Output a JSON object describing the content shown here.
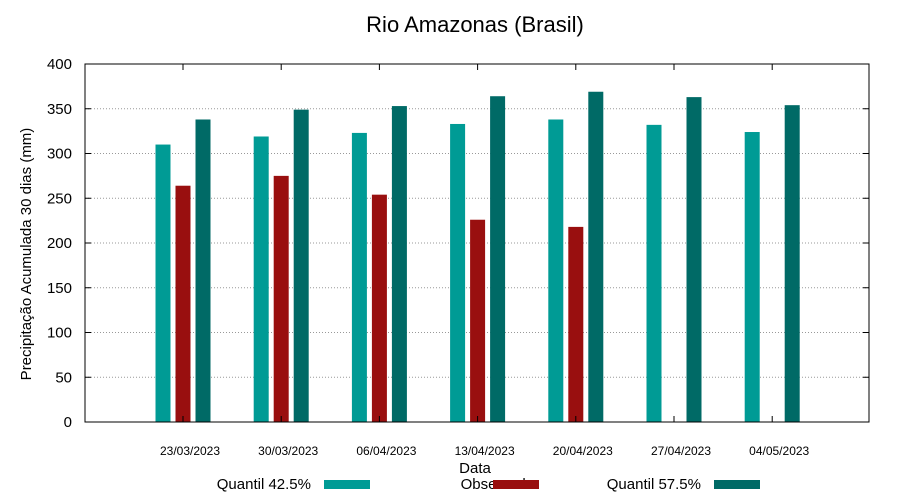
{
  "chart_data": {
    "type": "bar",
    "title": "Rio Amazonas (Brasil)",
    "xlabel": "Data",
    "ylabel": "Precipitação Acumulada 30 dias (mm)",
    "ylim": [
      0,
      400
    ],
    "yticks": [
      0,
      50,
      100,
      150,
      200,
      250,
      300,
      350,
      400
    ],
    "grid": true,
    "legend_position": "bottom",
    "categories": [
      "23/03/2023",
      "30/03/2023",
      "06/04/2023",
      "13/04/2023",
      "20/04/2023",
      "27/04/2023",
      "04/05/2023"
    ],
    "series": [
      {
        "name": "Quantil 42.5%",
        "color": "#009b95",
        "values": [
          310,
          319,
          323,
          333,
          338,
          332,
          324
        ]
      },
      {
        "name": "Observado",
        "color": "#990f0f",
        "values": [
          264,
          275,
          254,
          226,
          218,
          null,
          null
        ]
      },
      {
        "name": "Quantil 57.5%",
        "color": "#006a66",
        "values": [
          338,
          349,
          353,
          364,
          369,
          363,
          354
        ]
      }
    ]
  }
}
